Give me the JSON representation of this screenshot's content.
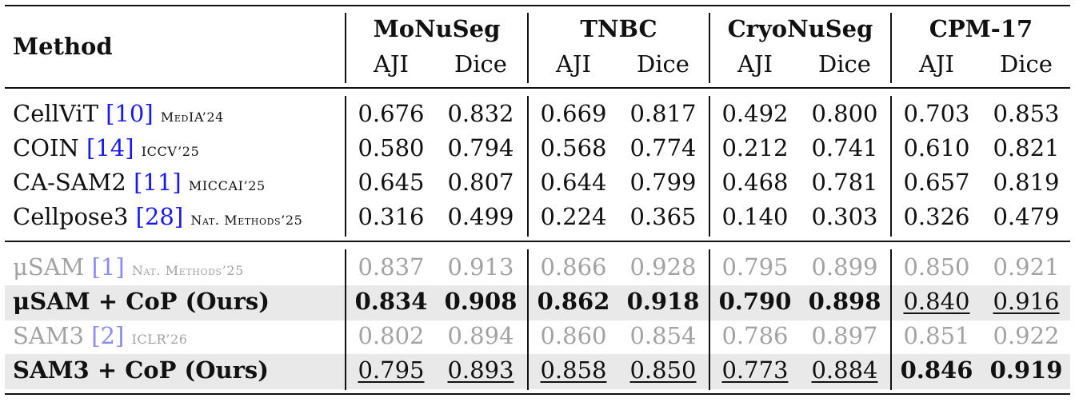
{
  "header": {
    "method_label": "Method",
    "datasets": [
      "MoNuSeg",
      "TNBC",
      "CryoNuSeg",
      "CPM-17"
    ],
    "metrics": [
      "AJI",
      "Dice"
    ]
  },
  "rows": [
    {
      "name": "CellViT",
      "cite": "[10]",
      "venue": "MedIA’24",
      "values": [
        "0.676",
        "0.832",
        "0.669",
        "0.817",
        "0.492",
        "0.800",
        "0.703",
        "0.853"
      ],
      "style": [
        "n",
        "n",
        "n",
        "n",
        "n",
        "n",
        "n",
        "n"
      ],
      "group": 1,
      "gray": false,
      "highlight": false
    },
    {
      "name": "COIN",
      "cite": "[14]",
      "venue": "ICCV’25",
      "values": [
        "0.580",
        "0.794",
        "0.568",
        "0.774",
        "0.212",
        "0.741",
        "0.610",
        "0.821"
      ],
      "style": [
        "n",
        "n",
        "n",
        "n",
        "n",
        "n",
        "n",
        "n"
      ],
      "group": 1,
      "gray": false,
      "highlight": false
    },
    {
      "name": "CA-SAM2",
      "cite": "[11]",
      "venue": "MICCAI’25",
      "values": [
        "0.645",
        "0.807",
        "0.644",
        "0.799",
        "0.468",
        "0.781",
        "0.657",
        "0.819"
      ],
      "style": [
        "n",
        "n",
        "n",
        "n",
        "n",
        "n",
        "n",
        "n"
      ],
      "group": 1,
      "gray": false,
      "highlight": false
    },
    {
      "name": "Cellpose3",
      "cite": "[28]",
      "venue": "Nat. Methods’25",
      "values": [
        "0.316",
        "0.499",
        "0.224",
        "0.365",
        "0.140",
        "0.303",
        "0.326",
        "0.479"
      ],
      "style": [
        "n",
        "n",
        "n",
        "n",
        "n",
        "n",
        "n",
        "n"
      ],
      "group": 1,
      "gray": false,
      "highlight": false
    },
    {
      "name": "μSAM",
      "cite": "[1]",
      "venue": "Nat. Methods’25",
      "values": [
        "0.837",
        "0.913",
        "0.866",
        "0.928",
        "0.795",
        "0.899",
        "0.850",
        "0.921"
      ],
      "style": [
        "n",
        "n",
        "n",
        "n",
        "n",
        "n",
        "n",
        "n"
      ],
      "group": 2,
      "gray": true,
      "highlight": false
    },
    {
      "name": "μSAM + CoP (Ours)",
      "cite": "",
      "venue": "",
      "values": [
        "0.834",
        "0.908",
        "0.862",
        "0.918",
        "0.790",
        "0.898",
        "0.840",
        "0.916"
      ],
      "style": [
        "b",
        "b",
        "b",
        "b",
        "b",
        "b",
        "u",
        "u"
      ],
      "group": 2,
      "gray": false,
      "highlight": true
    },
    {
      "name": "SAM3",
      "cite": "[2]",
      "venue": "ICLR’26",
      "values": [
        "0.802",
        "0.894",
        "0.860",
        "0.854",
        "0.786",
        "0.897",
        "0.851",
        "0.922"
      ],
      "style": [
        "n",
        "n",
        "n",
        "n",
        "n",
        "n",
        "n",
        "n"
      ],
      "group": 2,
      "gray": true,
      "highlight": false
    },
    {
      "name": "SAM3 + CoP (Ours)",
      "cite": "",
      "venue": "",
      "values": [
        "0.795",
        "0.893",
        "0.858",
        "0.850",
        "0.773",
        "0.884",
        "0.846",
        "0.919"
      ],
      "style": [
        "u",
        "u",
        "u",
        "u",
        "u",
        "u",
        "b",
        "b"
      ],
      "group": 2,
      "gray": false,
      "highlight": true
    }
  ]
}
